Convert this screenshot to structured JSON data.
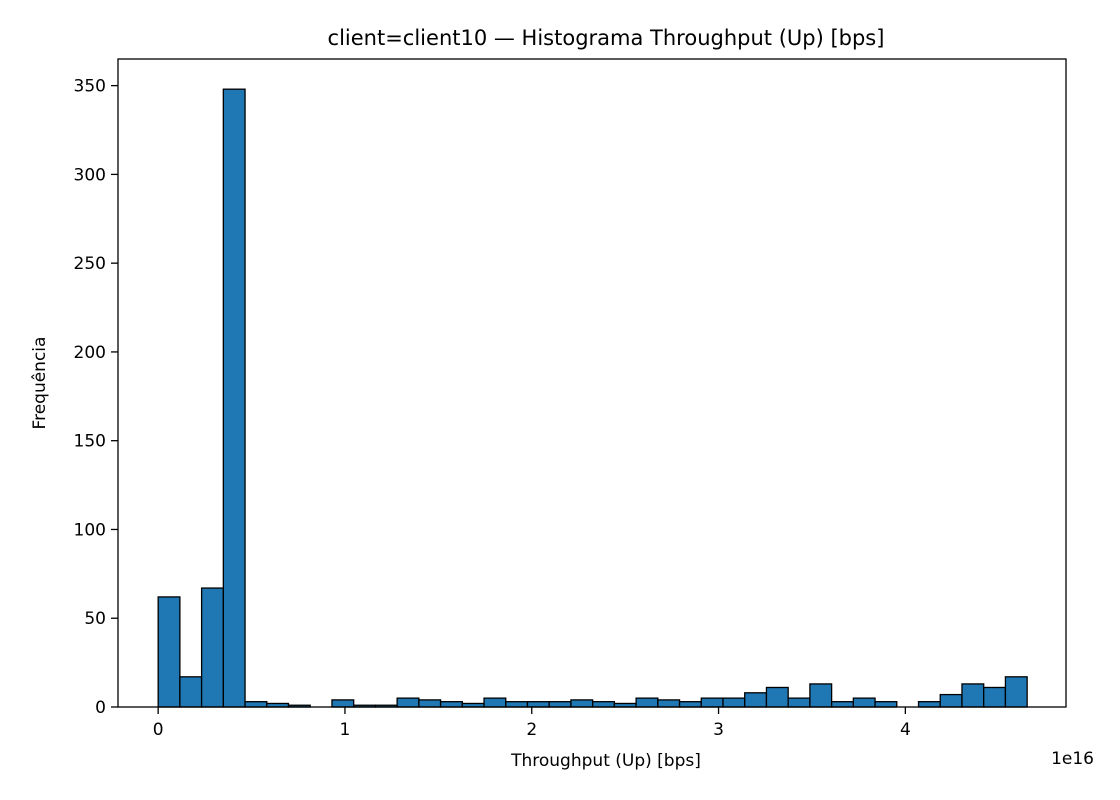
{
  "chart_data": {
    "type": "bar",
    "title": "client=client10 — Histograma Throughput (Up) [bps]",
    "xlabel": "Throughput (Up) [bps]",
    "ylabel": "Frequência",
    "x_offset_label": "1e16",
    "bar_color": "#1f77b4",
    "edge_color": "#000000",
    "grid": false,
    "legend": "none",
    "xlim": [
      -0.215,
      4.86
    ],
    "ylim": [
      0,
      365
    ],
    "xticks": [
      0,
      1,
      2,
      3,
      4
    ],
    "xtick_labels": [
      "0",
      "1",
      "2",
      "3",
      "4"
    ],
    "yticks": [
      0,
      50,
      100,
      150,
      200,
      250,
      300,
      350
    ],
    "ytick_labels": [
      "0",
      "50",
      "100",
      "150",
      "200",
      "250",
      "300",
      "350"
    ],
    "bin_start": 0,
    "bin_width": 0.1163,
    "values": [
      62,
      17,
      67,
      348,
      3,
      2,
      1,
      0,
      4,
      1,
      1,
      5,
      4,
      3,
      2,
      5,
      3,
      3,
      3,
      4,
      3,
      2,
      5,
      4,
      3,
      5,
      5,
      8,
      11,
      5,
      13,
      3,
      5,
      3,
      0,
      3,
      7,
      13,
      11,
      17
    ]
  }
}
